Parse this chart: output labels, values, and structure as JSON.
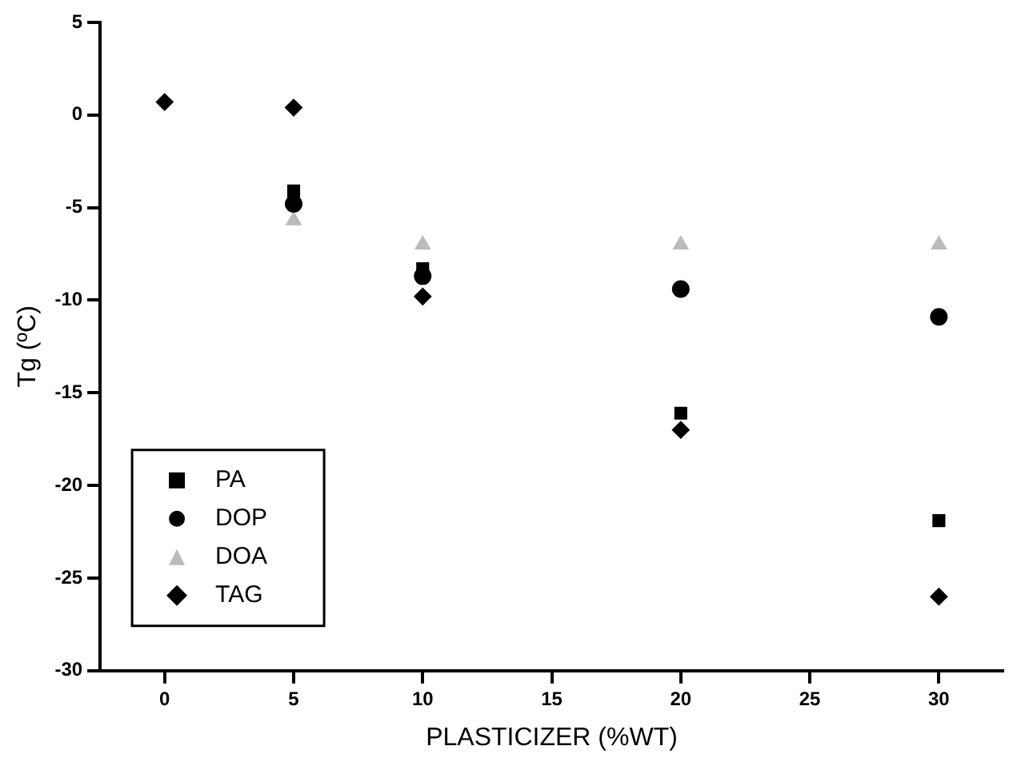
{
  "chart_data": {
    "type": "scatter",
    "xlabel": "PLASTICIZER (%WT)",
    "ylabel": "Tg (ºC)",
    "xlim": [
      -2.5,
      32.5
    ],
    "xticks": [
      0,
      5,
      10,
      15,
      20,
      25,
      30
    ],
    "ylim": [
      -30,
      5
    ],
    "yticks": [
      -30,
      -25,
      -20,
      -15,
      -10,
      -5,
      0,
      5
    ],
    "grid": false,
    "legend": "bottom left",
    "series": [
      {
        "name": "PA",
        "color": "#000000",
        "marker": "square",
        "x": [
          5,
          10,
          20,
          30
        ],
        "values": [
          -4.1,
          -8.3,
          -16.1,
          -21.9
        ]
      },
      {
        "name": "DOP",
        "color": "#000000",
        "marker": "circle",
        "x": [
          5,
          10,
          20,
          30
        ],
        "values": [
          -4.8,
          -8.7,
          -9.4,
          -10.9
        ]
      },
      {
        "name": "DOA",
        "color": "#bbbbbb",
        "marker": "triangle",
        "x": [
          5,
          10,
          20,
          30
        ],
        "values": [
          -5.7,
          -7.0,
          -7.0,
          -7.0
        ]
      },
      {
        "name": "TAG",
        "color": "#000000",
        "marker": "diamond",
        "x": [
          0,
          5,
          10,
          20,
          30
        ],
        "values": [
          0.7,
          0.4,
          -9.8,
          -17.0,
          -26.0
        ]
      }
    ]
  }
}
